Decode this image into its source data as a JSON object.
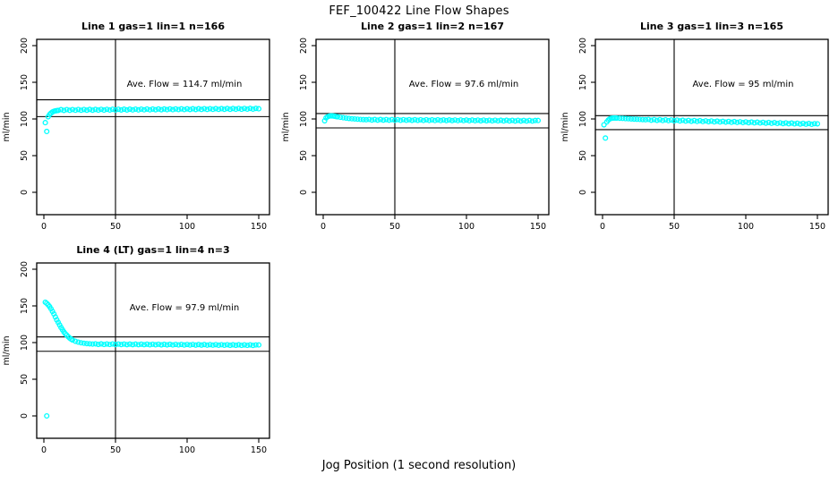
{
  "page": {
    "title": "FEF_100422  Line Flow Shapes",
    "xlabel": "Jog Position (1 second resolution)",
    "background": "#ffffff",
    "marker_color": "#00FFFF",
    "axis_color": "#000000"
  },
  "chart_data": [
    {
      "type": "scatter",
      "title": "Line 1 gas=1 lin=1 n=166",
      "annotation": "Ave. Flow =  114.7  ml/min",
      "ave_flow_ml_min": 114.7,
      "ylabel": "ml/min",
      "xlim": [
        0,
        150
      ],
      "ylim": [
        0,
        200
      ],
      "xticks": [
        0,
        50,
        100,
        150
      ],
      "yticks": [
        0,
        50,
        100,
        150,
        200
      ],
      "grid": false,
      "legend": "none",
      "reference_lines": {
        "vertical_x": 50,
        "horizontal": [
          126.2,
          103.2
        ]
      },
      "marker": "open-circle",
      "marker_color": "#00FFFF",
      "points": [
        [
          1,
          95
        ],
        [
          2,
          83
        ],
        [
          3,
          103
        ],
        [
          4,
          106
        ],
        [
          5,
          108
        ],
        [
          6,
          109.5
        ],
        [
          7,
          110.5
        ],
        [
          8,
          111
        ],
        [
          9,
          111.4
        ],
        [
          10,
          111.7
        ],
        [
          12,
          112.7
        ],
        [
          14,
          111.7
        ],
        [
          16,
          112.8
        ],
        [
          18,
          111.8
        ],
        [
          20,
          112.8
        ],
        [
          22,
          111.9
        ],
        [
          24,
          112.9
        ],
        [
          26,
          111.9
        ],
        [
          28,
          112.9
        ],
        [
          30,
          112
        ],
        [
          32,
          113
        ],
        [
          34,
          112
        ],
        [
          36,
          113
        ],
        [
          38,
          112.1
        ],
        [
          40,
          113.1
        ],
        [
          42,
          112.1
        ],
        [
          44,
          113.1
        ],
        [
          46,
          112.2
        ],
        [
          48,
          113.2
        ],
        [
          50,
          112.2
        ],
        [
          52,
          113.2
        ],
        [
          54,
          112.3
        ],
        [
          56,
          113.3
        ],
        [
          58,
          112.3
        ],
        [
          60,
          113.3
        ],
        [
          62,
          112.4
        ],
        [
          64,
          113.4
        ],
        [
          66,
          112.4
        ],
        [
          68,
          113.4
        ],
        [
          70,
          112.5
        ],
        [
          72,
          113.5
        ],
        [
          74,
          112.5
        ],
        [
          76,
          113.5
        ],
        [
          78,
          112.6
        ],
        [
          80,
          113.6
        ],
        [
          82,
          112.6
        ],
        [
          84,
          113.6
        ],
        [
          86,
          112.7
        ],
        [
          88,
          113.7
        ],
        [
          90,
          112.7
        ],
        [
          92,
          113.7
        ],
        [
          94,
          112.8
        ],
        [
          96,
          113.8
        ],
        [
          98,
          112.8
        ],
        [
          100,
          113.8
        ],
        [
          102,
          112.9
        ],
        [
          104,
          113.9
        ],
        [
          106,
          112.9
        ],
        [
          108,
          113.9
        ],
        [
          110,
          113
        ],
        [
          112,
          114
        ],
        [
          114,
          113
        ],
        [
          116,
          114
        ],
        [
          118,
          113.1
        ],
        [
          120,
          114.1
        ],
        [
          122,
          113.1
        ],
        [
          124,
          114.1
        ],
        [
          126,
          113.2
        ],
        [
          128,
          114.2
        ],
        [
          130,
          113.2
        ],
        [
          132,
          114.2
        ],
        [
          134,
          113.3
        ],
        [
          136,
          114.3
        ],
        [
          138,
          113.3
        ],
        [
          140,
          114.3
        ],
        [
          142,
          113.4
        ],
        [
          144,
          114.4
        ],
        [
          146,
          113.4
        ],
        [
          148,
          114.4
        ],
        [
          150,
          113.9
        ]
      ]
    },
    {
      "type": "scatter",
      "title": "Line 2 gas=1 lin=2 n=167",
      "annotation": "Ave. Flow =  97.6  ml/min",
      "ave_flow_ml_min": 97.6,
      "ylabel": "ml/min",
      "xlim": [
        0,
        150
      ],
      "ylim": [
        0,
        200
      ],
      "xticks": [
        0,
        50,
        100,
        150
      ],
      "yticks": [
        0,
        50,
        100,
        150,
        200
      ],
      "grid": false,
      "legend": "none",
      "reference_lines": {
        "vertical_x": 50,
        "horizontal": [
          107.4,
          87.8
        ]
      },
      "marker": "open-circle",
      "marker_color": "#00FFFF",
      "points": [
        [
          1,
          97.5
        ],
        [
          2,
          101.5
        ],
        [
          3,
          103
        ],
        [
          4,
          103.8
        ],
        [
          5,
          104.2
        ],
        [
          6,
          104.2
        ],
        [
          7,
          104
        ],
        [
          8,
          103.7
        ],
        [
          9,
          103.3
        ],
        [
          10,
          103
        ],
        [
          12,
          102.3
        ],
        [
          14,
          101.7
        ],
        [
          16,
          101.2
        ],
        [
          18,
          100.7
        ],
        [
          20,
          100.3
        ],
        [
          22,
          100
        ],
        [
          24,
          99.7
        ],
        [
          26,
          99.4
        ],
        [
          28,
          99.2
        ],
        [
          30,
          99
        ],
        [
          32,
          99.4
        ],
        [
          34,
          98.5
        ],
        [
          36,
          99.3
        ],
        [
          38,
          98.4
        ],
        [
          40,
          99.3
        ],
        [
          42,
          98.4
        ],
        [
          44,
          99.2
        ],
        [
          46,
          98.3
        ],
        [
          48,
          99.2
        ],
        [
          50,
          98.3
        ],
        [
          52,
          99.1
        ],
        [
          54,
          98.2
        ],
        [
          56,
          99.1
        ],
        [
          58,
          98.2
        ],
        [
          60,
          99
        ],
        [
          62,
          98.1
        ],
        [
          64,
          99
        ],
        [
          66,
          98.1
        ],
        [
          68,
          98.9
        ],
        [
          70,
          98
        ],
        [
          72,
          98.9
        ],
        [
          74,
          98
        ],
        [
          76,
          98.8
        ],
        [
          78,
          97.9
        ],
        [
          80,
          98.8
        ],
        [
          82,
          97.9
        ],
        [
          84,
          98.7
        ],
        [
          86,
          97.8
        ],
        [
          88,
          98.7
        ],
        [
          90,
          97.8
        ],
        [
          92,
          98.6
        ],
        [
          94,
          97.7
        ],
        [
          96,
          98.6
        ],
        [
          98,
          97.7
        ],
        [
          100,
          98.5
        ],
        [
          102,
          97.6
        ],
        [
          104,
          98.5
        ],
        [
          106,
          97.6
        ],
        [
          108,
          98.4
        ],
        [
          110,
          97.5
        ],
        [
          112,
          98.4
        ],
        [
          114,
          97.5
        ],
        [
          116,
          98.3
        ],
        [
          118,
          97.4
        ],
        [
          120,
          98.3
        ],
        [
          122,
          97.4
        ],
        [
          124,
          98.2
        ],
        [
          126,
          97.3
        ],
        [
          128,
          98.2
        ],
        [
          130,
          97.3
        ],
        [
          132,
          98.1
        ],
        [
          134,
          97.2
        ],
        [
          136,
          98.1
        ],
        [
          138,
          97.2
        ],
        [
          140,
          98
        ],
        [
          142,
          97.1
        ],
        [
          144,
          98
        ],
        [
          146,
          97.1
        ],
        [
          148,
          97.9
        ],
        [
          150,
          97.9
        ]
      ]
    },
    {
      "type": "scatter",
      "title": "Line 3 gas=1 lin=3 n=165",
      "annotation": "Ave. Flow =  95  ml/min",
      "ave_flow_ml_min": 95,
      "ylabel": "ml/min",
      "xlim": [
        0,
        150
      ],
      "ylim": [
        0,
        200
      ],
      "xticks": [
        0,
        50,
        100,
        150
      ],
      "yticks": [
        0,
        50,
        100,
        150,
        200
      ],
      "grid": false,
      "legend": "none",
      "reference_lines": {
        "vertical_x": 50,
        "horizontal": [
          104.5,
          85.5
        ]
      },
      "marker": "open-circle",
      "marker_color": "#00FFFF",
      "points": [
        [
          1,
          92
        ],
        [
          2,
          74
        ],
        [
          3,
          96
        ],
        [
          4,
          98.5
        ],
        [
          5,
          100
        ],
        [
          6,
          100.8
        ],
        [
          7,
          101.2
        ],
        [
          8,
          101.3
        ],
        [
          9,
          101.3
        ],
        [
          10,
          101.2
        ],
        [
          12,
          101
        ],
        [
          14,
          100.8
        ],
        [
          16,
          100.5
        ],
        [
          18,
          100.3
        ],
        [
          20,
          100
        ],
        [
          22,
          99.8
        ],
        [
          24,
          99.6
        ],
        [
          26,
          99.4
        ],
        [
          28,
          99.2
        ],
        [
          30,
          99
        ],
        [
          32,
          99.4
        ],
        [
          34,
          98.3
        ],
        [
          36,
          99.2
        ],
        [
          38,
          98.1
        ],
        [
          40,
          99
        ],
        [
          42,
          97.9
        ],
        [
          44,
          98.8
        ],
        [
          46,
          97.7
        ],
        [
          48,
          98.6
        ],
        [
          50,
          97.5
        ],
        [
          52,
          98.4
        ],
        [
          54,
          97.3
        ],
        [
          56,
          98.2
        ],
        [
          58,
          97.1
        ],
        [
          60,
          98
        ],
        [
          62,
          96.9
        ],
        [
          64,
          97.8
        ],
        [
          66,
          96.7
        ],
        [
          68,
          97.6
        ],
        [
          70,
          96.5
        ],
        [
          72,
          97.4
        ],
        [
          74,
          96.3
        ],
        [
          76,
          97.2
        ],
        [
          78,
          96.1
        ],
        [
          80,
          97
        ],
        [
          82,
          95.9
        ],
        [
          84,
          96.8
        ],
        [
          86,
          95.7
        ],
        [
          88,
          96.6
        ],
        [
          90,
          95.5
        ],
        [
          92,
          96.4
        ],
        [
          94,
          95.3
        ],
        [
          96,
          96.2
        ],
        [
          98,
          95.1
        ],
        [
          100,
          96
        ],
        [
          102,
          94.9
        ],
        [
          104,
          95.8
        ],
        [
          106,
          94.7
        ],
        [
          108,
          95.6
        ],
        [
          110,
          94.5
        ],
        [
          112,
          95.4
        ],
        [
          114,
          94.3
        ],
        [
          116,
          95.2
        ],
        [
          118,
          94.1
        ],
        [
          120,
          95
        ],
        [
          122,
          93.9
        ],
        [
          124,
          94.8
        ],
        [
          126,
          93.7
        ],
        [
          128,
          94.6
        ],
        [
          130,
          93.5
        ],
        [
          132,
          94.4
        ],
        [
          134,
          93.3
        ],
        [
          136,
          94.2
        ],
        [
          138,
          93.1
        ],
        [
          140,
          94
        ],
        [
          142,
          92.9
        ],
        [
          144,
          93.8
        ],
        [
          146,
          92.7
        ],
        [
          148,
          93.6
        ],
        [
          150,
          93.4
        ]
      ]
    },
    {
      "type": "scatter",
      "title": "Line 4 (LT) gas=1 lin=4 n=3",
      "annotation": "Ave. Flow =  97.9  ml/min",
      "ave_flow_ml_min": 97.9,
      "ylabel": "ml/min",
      "xlim": [
        0,
        150
      ],
      "ylim": [
        0,
        200
      ],
      "xticks": [
        0,
        50,
        100,
        150
      ],
      "yticks": [
        0,
        50,
        100,
        150,
        200
      ],
      "grid": false,
      "legend": "none",
      "reference_lines": {
        "vertical_x": 50,
        "horizontal": [
          107.7,
          88.1
        ]
      },
      "marker": "open-circle",
      "marker_color": "#00FFFF",
      "points": [
        [
          1,
          155
        ],
        [
          2,
          0
        ],
        [
          2,
          153.5
        ],
        [
          3,
          151.5
        ],
        [
          4,
          149
        ],
        [
          5,
          146
        ],
        [
          6,
          142.5
        ],
        [
          7,
          139
        ],
        [
          8,
          135
        ],
        [
          9,
          131
        ],
        [
          10,
          127.5
        ],
        [
          11,
          124
        ],
        [
          12,
          120.5
        ],
        [
          13,
          117.5
        ],
        [
          14,
          114.5
        ],
        [
          15,
          112
        ],
        [
          16,
          110
        ],
        [
          17,
          108
        ],
        [
          18,
          106.2
        ],
        [
          19,
          104.8
        ],
        [
          20,
          103.5
        ],
        [
          22,
          101.8
        ],
        [
          24,
          100.6
        ],
        [
          26,
          99.7
        ],
        [
          28,
          99.1
        ],
        [
          30,
          98.6
        ],
        [
          32,
          98.3
        ],
        [
          34,
          98
        ],
        [
          36,
          98.3
        ],
        [
          38,
          97.5
        ],
        [
          40,
          98.2
        ],
        [
          42,
          97.4
        ],
        [
          44,
          98.1
        ],
        [
          46,
          97.4
        ],
        [
          48,
          98.1
        ],
        [
          50,
          97.3
        ],
        [
          52,
          98
        ],
        [
          54,
          97.3
        ],
        [
          56,
          98
        ],
        [
          58,
          97.2
        ],
        [
          60,
          97.9
        ],
        [
          62,
          97.2
        ],
        [
          64,
          97.9
        ],
        [
          66,
          97.1
        ],
        [
          68,
          97.8
        ],
        [
          70,
          97.1
        ],
        [
          72,
          97.8
        ],
        [
          74,
          97
        ],
        [
          76,
          97.7
        ],
        [
          78,
          97
        ],
        [
          80,
          97.7
        ],
        [
          82,
          96.9
        ],
        [
          84,
          97.6
        ],
        [
          86,
          96.9
        ],
        [
          88,
          97.6
        ],
        [
          90,
          96.8
        ],
        [
          92,
          97.5
        ],
        [
          94,
          96.8
        ],
        [
          96,
          97.5
        ],
        [
          98,
          96.7
        ],
        [
          100,
          97.4
        ],
        [
          102,
          96.7
        ],
        [
          104,
          97.4
        ],
        [
          106,
          96.6
        ],
        [
          108,
          97.3
        ],
        [
          110,
          96.6
        ],
        [
          112,
          97.3
        ],
        [
          114,
          96.5
        ],
        [
          116,
          97.2
        ],
        [
          118,
          96.5
        ],
        [
          120,
          97.2
        ],
        [
          122,
          96.4
        ],
        [
          124,
          97.1
        ],
        [
          126,
          96.4
        ],
        [
          128,
          97.1
        ],
        [
          130,
          96.3
        ],
        [
          132,
          97
        ],
        [
          134,
          96.3
        ],
        [
          136,
          97
        ],
        [
          138,
          96.2
        ],
        [
          140,
          96.9
        ],
        [
          142,
          96.2
        ],
        [
          144,
          96.9
        ],
        [
          146,
          96.1
        ],
        [
          148,
          96.8
        ],
        [
          150,
          96.8
        ]
      ]
    }
  ]
}
